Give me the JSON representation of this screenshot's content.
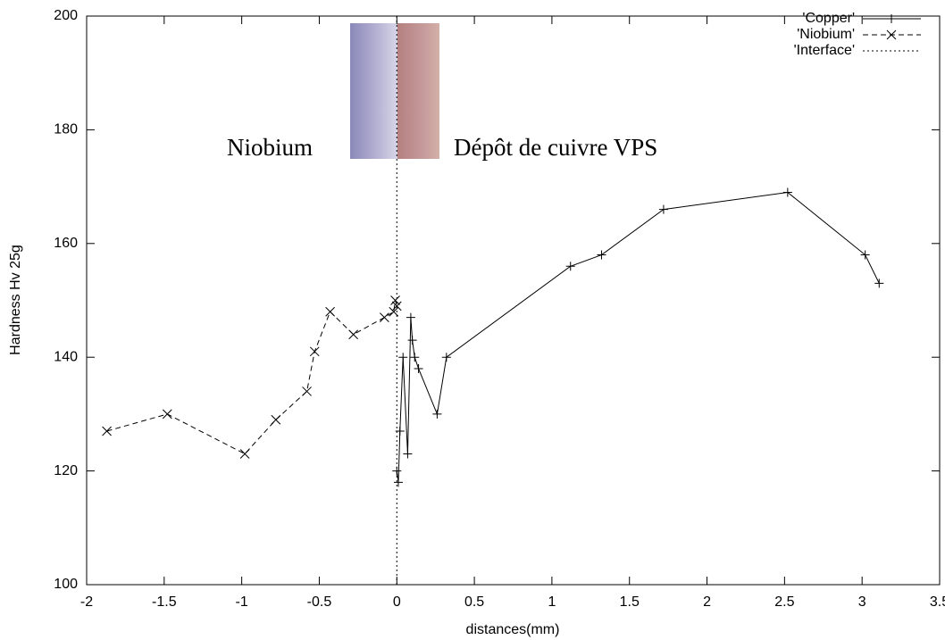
{
  "chart_data": {
    "type": "line",
    "xlabel": "distances(mm)",
    "ylabel": "Hardness Hv 25g",
    "xlim": [
      -2,
      3.5
    ],
    "xticks": [
      -2,
      -1.5,
      -1,
      -0.5,
      0,
      0.5,
      1,
      1.5,
      2,
      2.5,
      3,
      3.5
    ],
    "ylim": [
      100,
      200
    ],
    "yticks": [
      100,
      120,
      140,
      160,
      180,
      200
    ],
    "grid": false,
    "legend_position": "top-right",
    "annotations": [
      "Niobium",
      "Dépôt de cuivre VPS"
    ],
    "series": [
      {
        "name": "'Copper'",
        "color": "#000000",
        "line_style": "solid",
        "marker": "plus",
        "x": [
          0,
          0.01,
          0.02,
          0.04,
          0.07,
          0.09,
          0.1,
          0.115,
          0.14,
          0.26,
          0.32,
          1.12,
          1.32,
          1.72,
          2.52,
          3.02,
          3.11
        ],
        "values": [
          120,
          118,
          127,
          140,
          123,
          147,
          143,
          140,
          138,
          130,
          140,
          156,
          158,
          166,
          169,
          158,
          153
        ]
      },
      {
        "name": "'Niobium'",
        "color": "#000000",
        "line_style": "dashed",
        "marker": "cross",
        "x": [
          -1.87,
          -1.48,
          -0.98,
          -0.78,
          -0.58,
          -0.53,
          -0.43,
          -0.28,
          -0.08,
          -0.02,
          -0.01,
          0
        ],
        "values": [
          127,
          130,
          123,
          129,
          134,
          141,
          148,
          144,
          147,
          148,
          150,
          149
        ]
      },
      {
        "name": "'Interface'",
        "color": "#000000",
        "line_style": "dotted",
        "marker": "none",
        "x": [
          0,
          0
        ],
        "values": [
          100,
          200
        ]
      }
    ]
  }
}
